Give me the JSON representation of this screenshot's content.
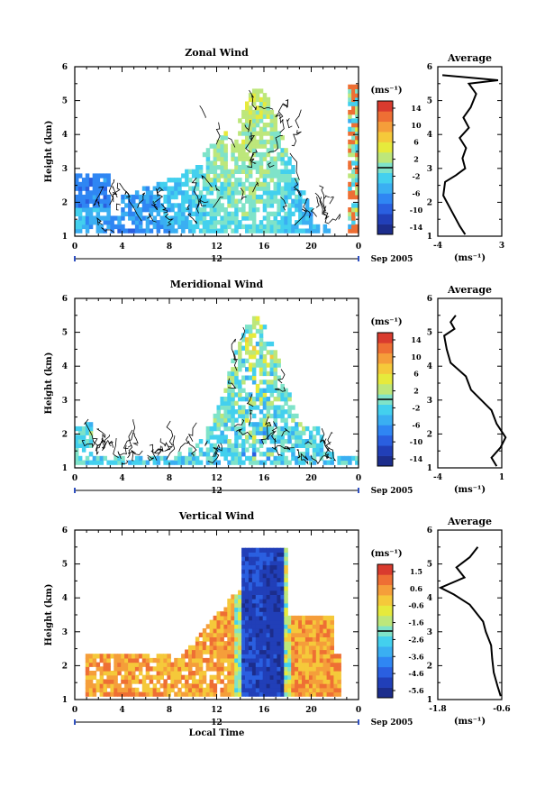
{
  "colors": {
    "colormap": [
      "#1c2d8c",
      "#213fb8",
      "#2a5fe0",
      "#2f86f3",
      "#3aaff2",
      "#43d0ee",
      "#7fe3c9",
      "#bde77b",
      "#e6ea3c",
      "#f5c93a",
      "#f59e3a",
      "#ee6f34",
      "#d93b2e"
    ],
    "contour": "#000000",
    "axis": "#000000"
  },
  "chart_data": [
    {
      "type": "heatmap",
      "title": "Zonal Wind",
      "xlabel": "",
      "ylabel": "Height (km)",
      "xlim": [
        0,
        24
      ],
      "ylim": [
        1,
        6
      ],
      "xticks": [
        "0",
        "4",
        "8",
        "12",
        "16",
        "20",
        "0"
      ],
      "yticks": [
        "1",
        "2",
        "3",
        "4",
        "5",
        "6"
      ],
      "date_marker": "12",
      "date_label": "Sep 2005",
      "colorbar": {
        "unit": "(ms⁻¹)",
        "ticks": [
          "14",
          "10",
          "6",
          "2",
          "-2",
          "-6",
          "-10",
          "-14"
        ],
        "range": [
          -16,
          16
        ]
      },
      "average": {
        "title": "Average",
        "unit": "(ms⁻¹)",
        "xticks": [
          "-4",
          "3"
        ],
        "xlim": [
          -4,
          3
        ],
        "profile": [
          [
            -1,
            1.05
          ],
          [
            -1.6,
            1.3
          ],
          [
            -2.4,
            1.7
          ],
          [
            -3,
            2.0
          ],
          [
            -3.4,
            2.2
          ],
          [
            -3.2,
            2.6
          ],
          [
            -2.0,
            2.8
          ],
          [
            -1.0,
            3.0
          ],
          [
            -1.3,
            3.3
          ],
          [
            -0.9,
            3.6
          ],
          [
            -1.6,
            3.9
          ],
          [
            -0.6,
            4.2
          ],
          [
            -1.2,
            4.5
          ],
          [
            -0.4,
            4.8
          ],
          [
            0.2,
            5.2
          ],
          [
            -0.6,
            5.5
          ],
          [
            2.6,
            5.6
          ],
          [
            -3.5,
            5.75
          ]
        ]
      }
    },
    {
      "type": "heatmap",
      "title": "Meridional Wind",
      "xlabel": "",
      "ylabel": "Height (km)",
      "xlim": [
        0,
        24
      ],
      "ylim": [
        1,
        6
      ],
      "xticks": [
        "0",
        "4",
        "8",
        "12",
        "16",
        "20",
        "0"
      ],
      "yticks": [
        "1",
        "2",
        "3",
        "4",
        "5",
        "6"
      ],
      "date_marker": "12",
      "date_label": "Sep 2005",
      "colorbar": {
        "unit": "(ms⁻¹)",
        "ticks": [
          "14",
          "10",
          "6",
          "2",
          "-2",
          "-6",
          "-10",
          "-14"
        ],
        "range": [
          -16,
          16
        ]
      },
      "average": {
        "title": "Average",
        "unit": "(ms⁻¹)",
        "xticks": [
          "-4",
          "1"
        ],
        "xlim": [
          -4,
          1
        ],
        "profile": [
          [
            0.6,
            1.05
          ],
          [
            0.2,
            1.3
          ],
          [
            0.9,
            1.6
          ],
          [
            1.3,
            1.9
          ],
          [
            0.6,
            2.3
          ],
          [
            0.2,
            2.7
          ],
          [
            -0.6,
            3.0
          ],
          [
            -1.4,
            3.3
          ],
          [
            -1.8,
            3.7
          ],
          [
            -3.0,
            4.1
          ],
          [
            -3.3,
            4.5
          ],
          [
            -3.5,
            4.9
          ],
          [
            -2.7,
            5.1
          ],
          [
            -3.0,
            5.3
          ],
          [
            -2.6,
            5.5
          ]
        ]
      }
    },
    {
      "type": "heatmap",
      "title": "Vertical Wind",
      "xlabel": "Local Time",
      "ylabel": "Height (km)",
      "xlim": [
        0,
        24
      ],
      "ylim": [
        1,
        6
      ],
      "xticks": [
        "0",
        "4",
        "8",
        "12",
        "16",
        "20",
        "0"
      ],
      "yticks": [
        "1",
        "2",
        "3",
        "4",
        "5",
        "6"
      ],
      "date_marker": "12",
      "date_label": "Sep 2005",
      "colorbar": {
        "unit": "(ms⁻¹)",
        "ticks": [
          "1.5",
          "0.6",
          "-0.6",
          "-1.6",
          "-2.6",
          "-3.6",
          "-4.6",
          "-5.6"
        ],
        "range": [
          -6.2,
          2.2
        ]
      },
      "average": {
        "title": "Average",
        "unit": "(ms⁻¹)",
        "xticks": [
          "-1.8",
          "-0.6"
        ],
        "xlim": [
          -1.8,
          -0.6
        ],
        "profile": [
          [
            -0.62,
            1.1
          ],
          [
            -0.68,
            1.4
          ],
          [
            -0.75,
            1.8
          ],
          [
            -0.78,
            2.2
          ],
          [
            -0.8,
            2.6
          ],
          [
            -0.9,
            3.0
          ],
          [
            -0.95,
            3.3
          ],
          [
            -1.05,
            3.5
          ],
          [
            -1.2,
            3.8
          ],
          [
            -1.5,
            4.1
          ],
          [
            -1.75,
            4.3
          ],
          [
            -1.3,
            4.6
          ],
          [
            -1.45,
            4.9
          ],
          [
            -1.2,
            5.2
          ],
          [
            -1.05,
            5.5
          ]
        ]
      }
    }
  ]
}
